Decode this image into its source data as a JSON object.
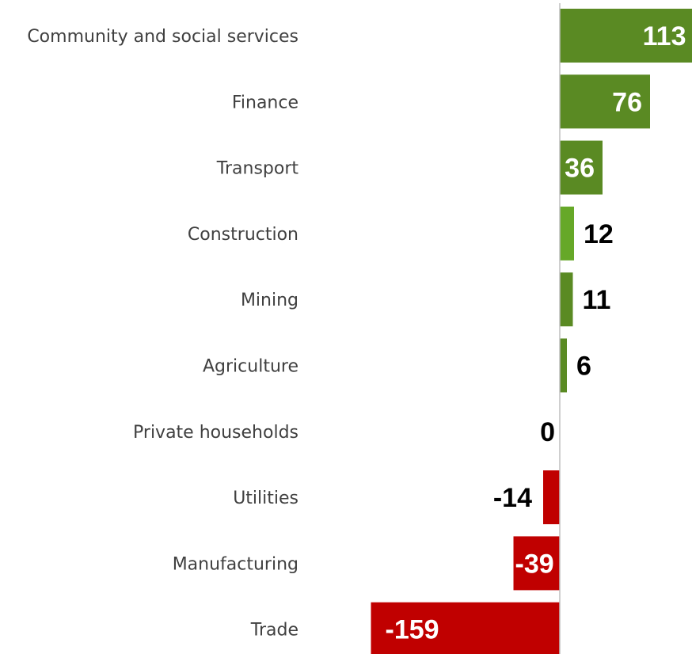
{
  "chart_data": {
    "type": "bar",
    "orientation": "horizontal",
    "title": "",
    "xlabel": "",
    "ylabel": "",
    "categories": [
      "Community and social services",
      "Finance",
      "Transport",
      "Construction",
      "Mining",
      "Agriculture",
      "Private households",
      "Utilities",
      "Manufacturing",
      "Trade"
    ],
    "values": [
      113,
      76,
      36,
      12,
      11,
      6,
      0,
      -14,
      -39,
      -159
    ],
    "xlim": [
      -160,
      114
    ],
    "grid": false,
    "legend": "none",
    "colors": {
      "positive": "#5a8a23",
      "positive_light": "#66a828",
      "negative": "#c00000",
      "axis": "#bfbfbf",
      "label_inside": "#ffffff",
      "label_outside": "#000000",
      "category_text": "#404040"
    }
  }
}
